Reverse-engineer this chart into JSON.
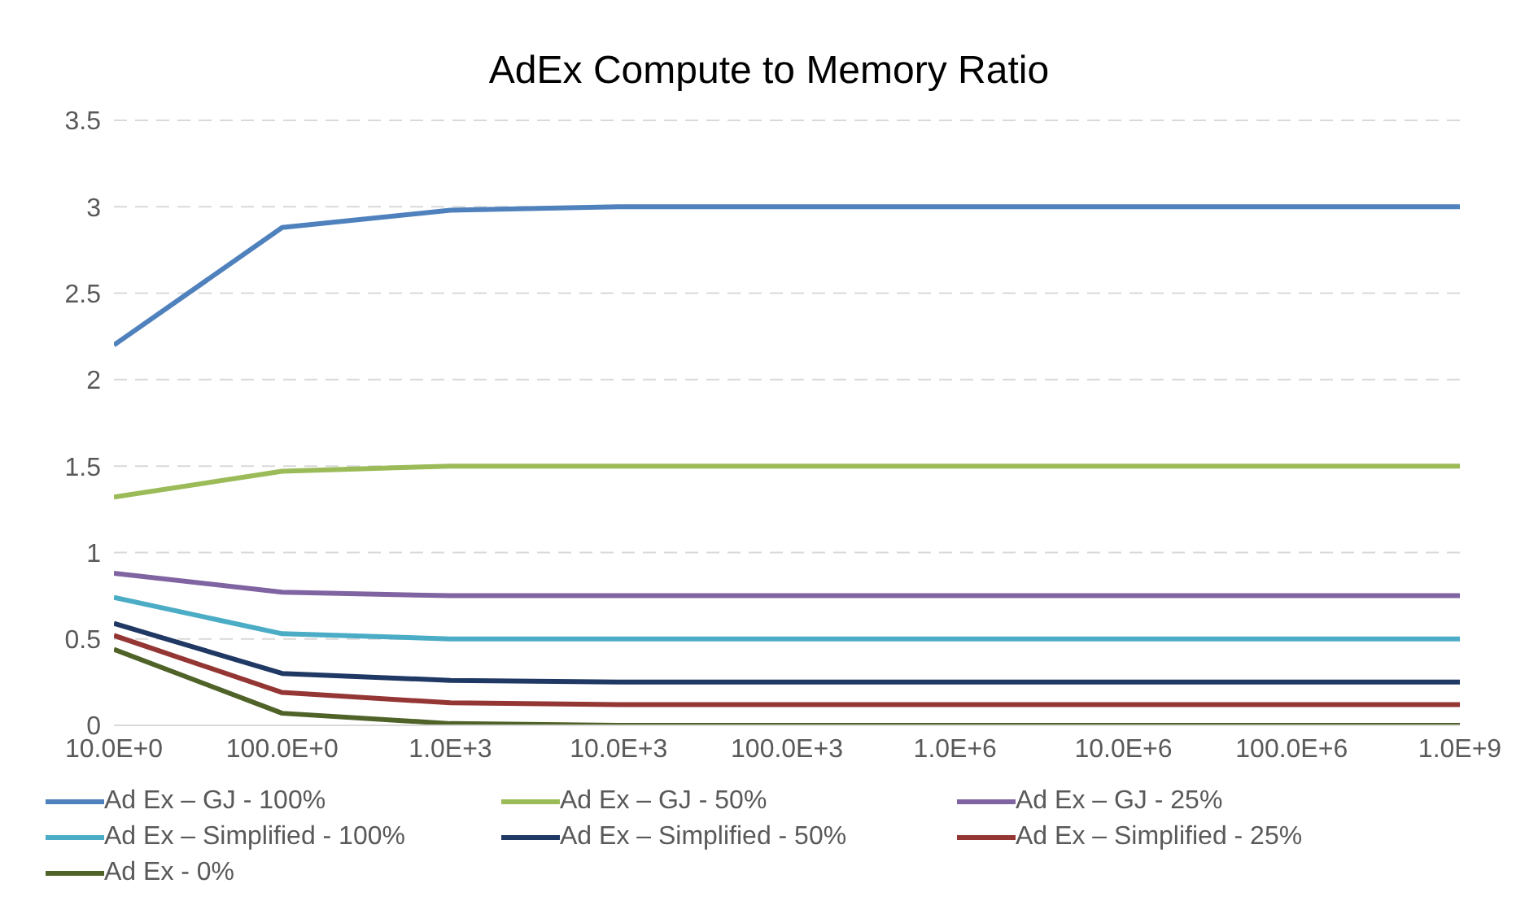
{
  "chart_data": {
    "type": "line",
    "title": "AdEx Compute to Memory Ratio",
    "categories": [
      "10.0E+0",
      "100.0E+0",
      "1.0E+3",
      "10.0E+3",
      "100.0E+3",
      "1.0E+6",
      "10.0E+6",
      "100.0E+6",
      "1.0E+9"
    ],
    "series": [
      {
        "name": "Ad Ex – GJ - 100%",
        "color": "#4f81bd",
        "values": [
          2.2,
          2.88,
          2.98,
          3,
          3,
          3,
          3,
          3,
          3
        ]
      },
      {
        "name": "Ad Ex – GJ - 50%",
        "color": "#9bbb59",
        "values": [
          1.32,
          1.47,
          1.5,
          1.5,
          1.5,
          1.5,
          1.5,
          1.5,
          1.5
        ]
      },
      {
        "name": "Ad Ex – GJ - 25%",
        "color": "#8064a2",
        "values": [
          0.88,
          0.77,
          0.75,
          0.75,
          0.75,
          0.75,
          0.75,
          0.75,
          0.75
        ]
      },
      {
        "name": "Ad Ex – Simplified - 100%",
        "color": "#4bacc6",
        "values": [
          0.74,
          0.53,
          0.5,
          0.5,
          0.5,
          0.5,
          0.5,
          0.5,
          0.5
        ]
      },
      {
        "name": "Ad Ex – Simplified - 50%",
        "color": "#1f3864",
        "values": [
          0.59,
          0.3,
          0.26,
          0.25,
          0.25,
          0.25,
          0.25,
          0.25,
          0.25
        ]
      },
      {
        "name": "Ad Ex – Simplified - 25%",
        "color": "#943634",
        "values": [
          0.52,
          0.19,
          0.13,
          0.12,
          0.12,
          0.12,
          0.12,
          0.12,
          0.12
        ]
      },
      {
        "name": "Ad Ex - 0%",
        "color": "#4f6228",
        "values": [
          0.44,
          0.07,
          0.01,
          0,
          0,
          0,
          0,
          0,
          0
        ]
      }
    ],
    "ylim": [
      0,
      3.5
    ],
    "yticks": [
      0,
      0.5,
      1,
      1.5,
      2,
      2.5,
      3,
      3.5
    ],
    "grid": "y",
    "legend": "bottom",
    "marker": "none",
    "line_style": "solid"
  }
}
